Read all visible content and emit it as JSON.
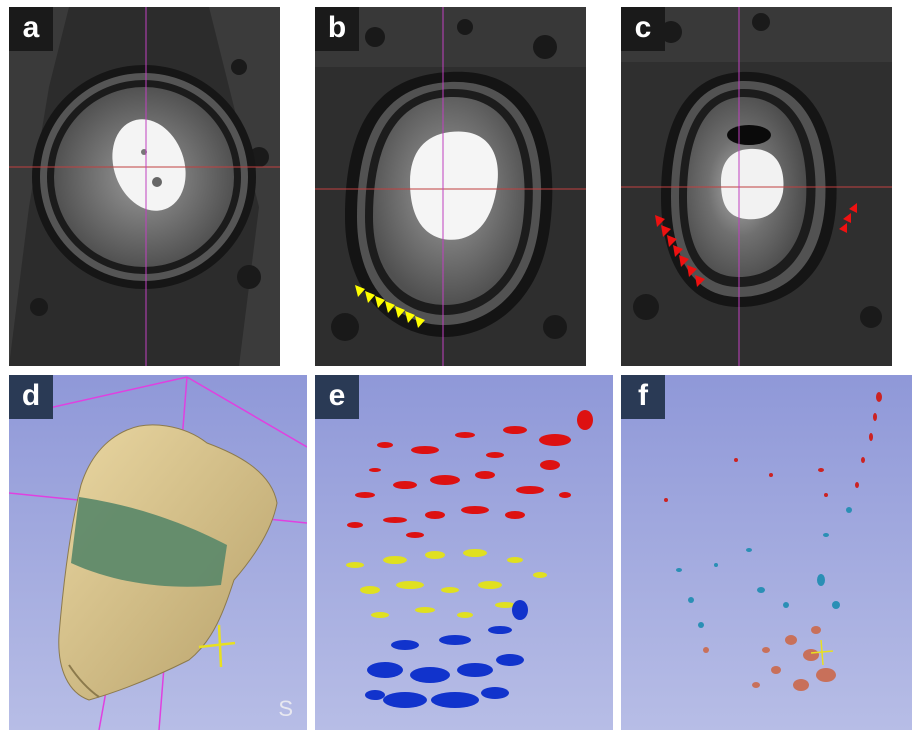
{
  "figure": {
    "panels": [
      {
        "id": "a",
        "label": "a",
        "kind": "ct-slice"
      },
      {
        "id": "b",
        "label": "b",
        "kind": "ct-slice",
        "arrowhead_color": "#ffff00"
      },
      {
        "id": "c",
        "label": "c",
        "kind": "ct-slice",
        "arrowhead_color": "#ee1111"
      },
      {
        "id": "d",
        "label": "d",
        "kind": "3d-surface",
        "corner_label": "S"
      },
      {
        "id": "e",
        "label": "e",
        "kind": "3d-segmentation",
        "colors": [
          "#dd1111",
          "#e0e020",
          "#1133cc"
        ]
      },
      {
        "id": "f",
        "label": "f",
        "kind": "3d-segmentation",
        "colors": [
          "#cc2222",
          "#2a8fb5",
          "#c8705a"
        ]
      }
    ],
    "colors": {
      "crosshair_horizontal": "#c04040",
      "crosshair_vertical": "#c040c0",
      "render_background": "#9aa3dc",
      "bone_surface": "#d8c38c",
      "band": "#5f8a6a"
    }
  }
}
